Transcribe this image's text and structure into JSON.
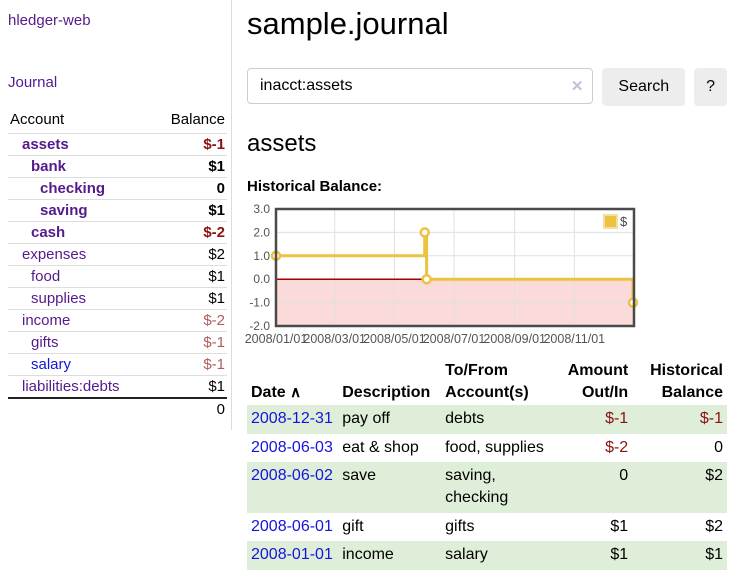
{
  "app": {
    "brand": "hledger-web"
  },
  "colors": {
    "link_purple": "#551a8b",
    "link_blue": "#1414dd",
    "negative_strong": "#8b1111",
    "negative_soft": "#b25b5b",
    "row_green": "#dfeed8",
    "series_gold": "#edc240"
  },
  "sidebar": {
    "journal_link": "Journal",
    "headers": {
      "account": "Account",
      "balance": "Balance"
    },
    "accounts": [
      {
        "name": "assets",
        "balance": "$-1"
      },
      {
        "name": "bank",
        "balance": "$1"
      },
      {
        "name": "checking",
        "balance": "0"
      },
      {
        "name": "saving",
        "balance": "$1"
      },
      {
        "name": "cash",
        "balance": "$-2"
      },
      {
        "name": "expenses",
        "balance": "$2"
      },
      {
        "name": "food",
        "balance": "$1"
      },
      {
        "name": "supplies",
        "balance": "$1"
      },
      {
        "name": "income",
        "balance": "$-2"
      },
      {
        "name": "gifts",
        "balance": "$-1"
      },
      {
        "name": "salary",
        "balance": "$-1"
      },
      {
        "name": "liabilities:debts",
        "balance": "$1"
      }
    ],
    "total": "0"
  },
  "header": {
    "title": "sample.journal"
  },
  "search": {
    "value": "inacct:assets",
    "clear_icon": "✕",
    "button_label": "Search",
    "help_label": "?"
  },
  "account_page": {
    "title": "assets",
    "chart_label": "Historical Balance:"
  },
  "chart_data": {
    "type": "line",
    "step": true,
    "series": [
      {
        "name": "$",
        "color": "#edc240",
        "points": [
          [
            "2008-01-01",
            1.0
          ],
          [
            "2008-06-01",
            2.0
          ],
          [
            "2008-06-03",
            0.0
          ],
          [
            "2008-12-31",
            -1.0
          ]
        ]
      }
    ],
    "xlim": [
      "2008-01-01",
      "2009-01-01"
    ],
    "ylim": [
      -2.0,
      3.0
    ],
    "yticks": [
      3.0,
      2.0,
      1.0,
      0.0,
      -1.0,
      -2.0
    ],
    "xticks": [
      "2008/01/01",
      "2008/03/01",
      "2008/05/01",
      "2008/07/01",
      "2008/09/01",
      "2008/11/01"
    ],
    "legend_position": "top-right",
    "grid": true,
    "grid_color": "#e0e0e0",
    "border_color": "#4a4a4a",
    "tick_color": "#545454",
    "zero_line_color": "#a40000",
    "negative_region_color": "#fbdada"
  },
  "register": {
    "sort_icon": "∧",
    "headers": {
      "date": "Date",
      "description": "Description",
      "accounts": "To/From Account(s)",
      "amount": "Amount Out/In",
      "balance": "Historical Balance"
    },
    "rows": [
      {
        "date": "2008-12-31",
        "description": "pay off",
        "accounts": "debts",
        "amount": "$-1",
        "balance": "$-1"
      },
      {
        "date": "2008-06-03",
        "description": "eat & shop",
        "accounts": "food, supplies",
        "amount": "$-2",
        "balance": "0"
      },
      {
        "date": "2008-06-02",
        "description": "save",
        "accounts": "saving, checking",
        "amount": "0",
        "balance": "$2"
      },
      {
        "date": "2008-06-01",
        "description": "gift",
        "accounts": "gifts",
        "amount": "$1",
        "balance": "$2"
      },
      {
        "date": "2008-01-01",
        "description": "income",
        "accounts": "salary",
        "amount": "$1",
        "balance": "$1"
      }
    ]
  }
}
